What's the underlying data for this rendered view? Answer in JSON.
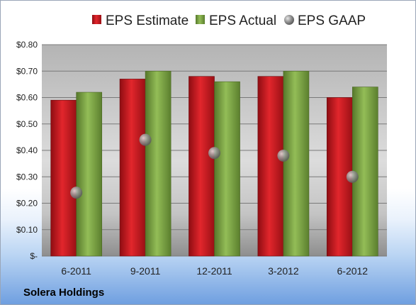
{
  "chart_data": {
    "type": "bar",
    "categories": [
      "6-2011",
      "9-2011",
      "12-2011",
      "3-2012",
      "6-2012"
    ],
    "series": [
      {
        "name": "EPS Estimate",
        "type": "bar",
        "values": [
          0.59,
          0.67,
          0.68,
          0.68,
          0.6
        ],
        "color": "#c0161c"
      },
      {
        "name": "EPS Actual",
        "type": "bar",
        "values": [
          0.62,
          0.7,
          0.66,
          0.7,
          0.64
        ],
        "color": "#79a341"
      },
      {
        "name": "EPS GAAP",
        "type": "scatter",
        "values": [
          0.24,
          0.44,
          0.39,
          0.38,
          0.3
        ],
        "color": "#9a9a9a"
      }
    ],
    "ylim": [
      0,
      0.8
    ],
    "y_ticks": [
      0,
      0.1,
      0.2,
      0.3,
      0.4,
      0.5,
      0.6,
      0.7,
      0.8
    ],
    "y_tick_labels": [
      "$-",
      "$0.10",
      "$0.20",
      "$0.30",
      "$0.40",
      "$0.50",
      "$0.60",
      "$0.70",
      "$0.80"
    ],
    "grid": true,
    "legend_position": "top",
    "annotation": "Solera Holdings"
  }
}
